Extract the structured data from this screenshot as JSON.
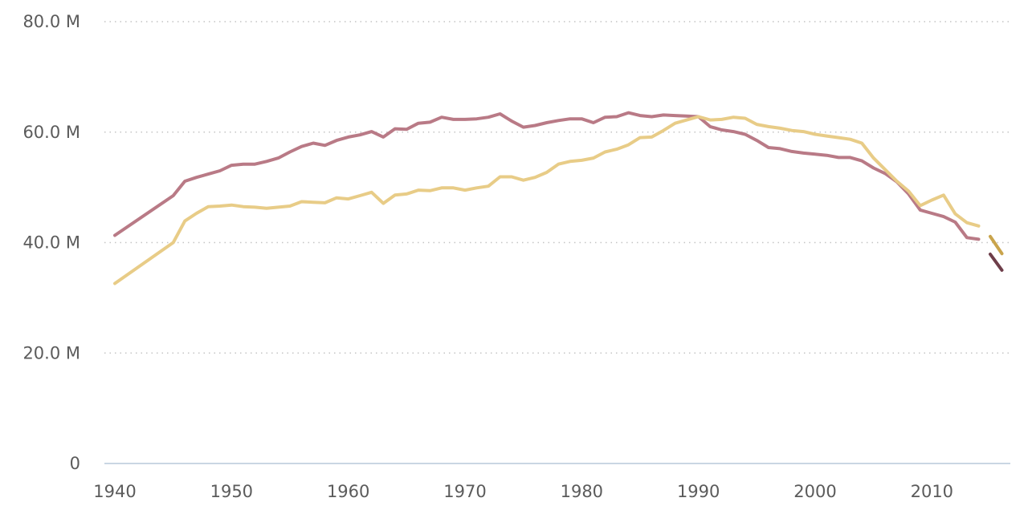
{
  "chart_data": {
    "type": "line",
    "title": "",
    "xlabel": "",
    "ylabel": "",
    "xlim": [
      1940,
      2016
    ],
    "ylim": [
      0,
      80000000
    ],
    "grid": true,
    "y_ticks": [
      {
        "value": 0,
        "label": "0"
      },
      {
        "value": 20000000,
        "label": "20.0 M"
      },
      {
        "value": 40000000,
        "label": "40.0 M"
      },
      {
        "value": 60000000,
        "label": "60.0 M"
      },
      {
        "value": 80000000,
        "label": "80.0 M"
      }
    ],
    "x_ticks": [
      {
        "value": 1940,
        "label": "1940"
      },
      {
        "value": 1950,
        "label": "1950"
      },
      {
        "value": 1960,
        "label": "1960"
      },
      {
        "value": 1970,
        "label": "1970"
      },
      {
        "value": 1980,
        "label": "1980"
      },
      {
        "value": 1990,
        "label": "1990"
      },
      {
        "value": 2000,
        "label": "2000"
      },
      {
        "value": 2010,
        "label": "2010"
      }
    ],
    "series": [
      {
        "color": "#b97a86",
        "x": [
          1940,
          1945,
          1946,
          1947,
          1948,
          1949,
          1950,
          1951,
          1952,
          1953,
          1954,
          1955,
          1956,
          1957,
          1958,
          1959,
          1960,
          1961,
          1962,
          1963,
          1964,
          1965,
          1966,
          1967,
          1968,
          1969,
          1970,
          1971,
          1972,
          1973,
          1974,
          1975,
          1976,
          1977,
          1978,
          1979,
          1980,
          1981,
          1982,
          1983,
          1984,
          1985,
          1986,
          1987,
          1988,
          1989,
          1990,
          1991,
          1992,
          1993,
          1994,
          1995,
          1996,
          1997,
          1998,
          1999,
          2000,
          2001,
          2002,
          2003,
          2004,
          2005,
          2006,
          2007,
          2008,
          2009,
          2010,
          2011,
          2012,
          2013,
          2014
        ],
        "values": [
          41300000,
          48500000,
          51100000,
          51800000,
          52400000,
          53000000,
          54000000,
          54200000,
          54200000,
          54700000,
          55300000,
          56400000,
          57400000,
          58000000,
          57600000,
          58500000,
          59100000,
          59500000,
          60100000,
          59100000,
          60600000,
          60500000,
          61600000,
          61800000,
          62700000,
          62300000,
          62300000,
          62400000,
          62700000,
          63300000,
          62000000,
          60900000,
          61200000,
          61700000,
          62100000,
          62400000,
          62400000,
          61700000,
          62700000,
          62800000,
          63500000,
          63000000,
          62800000,
          63100000,
          63000000,
          62900000,
          62800000,
          61000000,
          60400000,
          60100000,
          59600000,
          58500000,
          57200000,
          57000000,
          56500000,
          56200000,
          56000000,
          55800000,
          55400000,
          55400000,
          54800000,
          53500000,
          52500000,
          51000000,
          48800000,
          45900000,
          45300000,
          44700000,
          43700000,
          40900000,
          40600000
        ]
      },
      {
        "color": "#e8cc87",
        "x": [
          1940,
          1945,
          1946,
          1947,
          1948,
          1949,
          1950,
          1951,
          1952,
          1953,
          1954,
          1955,
          1956,
          1957,
          1958,
          1959,
          1960,
          1961,
          1962,
          1963,
          1964,
          1965,
          1966,
          1967,
          1968,
          1969,
          1970,
          1971,
          1972,
          1973,
          1974,
          1975,
          1976,
          1977,
          1978,
          1979,
          1980,
          1981,
          1982,
          1983,
          1984,
          1985,
          1986,
          1987,
          1988,
          1989,
          1990,
          1991,
          1992,
          1993,
          1994,
          1995,
          1996,
          1997,
          1998,
          1999,
          2000,
          2001,
          2002,
          2003,
          2004,
          2005,
          2006,
          2007,
          2008,
          2009,
          2010,
          2011,
          2012,
          2013,
          2014
        ],
        "values": [
          32600000,
          40000000,
          43900000,
          45300000,
          46500000,
          46600000,
          46800000,
          46500000,
          46400000,
          46200000,
          46400000,
          46600000,
          47400000,
          47300000,
          47200000,
          48100000,
          47900000,
          48500000,
          49100000,
          47100000,
          48600000,
          48800000,
          49500000,
          49400000,
          49900000,
          49900000,
          49500000,
          49900000,
          50200000,
          51900000,
          51900000,
          51300000,
          51800000,
          52700000,
          54200000,
          54700000,
          54900000,
          55300000,
          56400000,
          56900000,
          57700000,
          59000000,
          59100000,
          60300000,
          61600000,
          62200000,
          62800000,
          62200000,
          62300000,
          62700000,
          62500000,
          61400000,
          61000000,
          60700000,
          60300000,
          60100000,
          59600000,
          59300000,
          59000000,
          58700000,
          58000000,
          55300000,
          53200000,
          51100000,
          49300000,
          46700000,
          47700000,
          48600000,
          45200000,
          43600000,
          43000000
        ]
      },
      {
        "color": "#c9a44c",
        "dashed": true,
        "x": [
          2015,
          2016
        ],
        "values": [
          41100000,
          38000000
        ]
      },
      {
        "color": "#6e3e4a",
        "dashed": true,
        "x": [
          2015,
          2016
        ],
        "values": [
          37900000,
          35000000
        ]
      }
    ]
  }
}
